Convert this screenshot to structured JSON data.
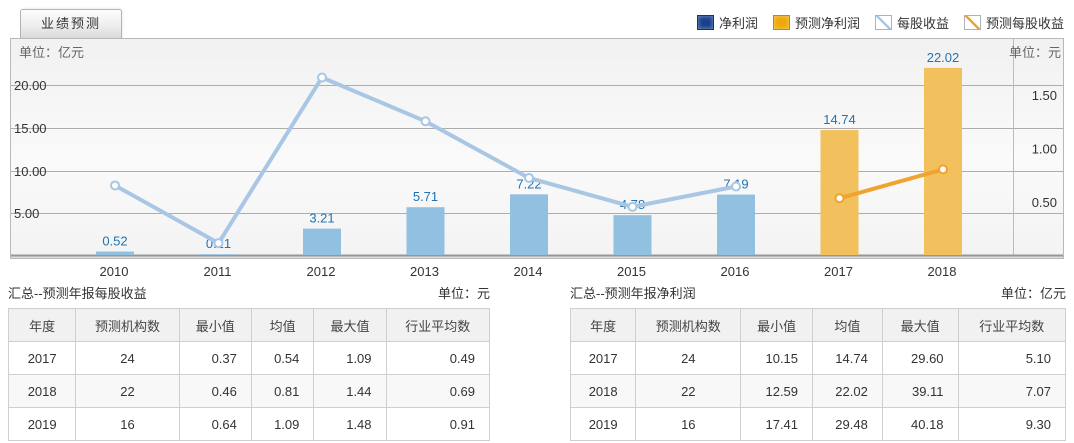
{
  "tab": {
    "label": "业绩预测"
  },
  "legend": {
    "items": [
      {
        "label": "净利润",
        "swatch": "fill",
        "color": "#17418d"
      },
      {
        "label": "预测净利润",
        "swatch": "fill",
        "color": "#eea706"
      },
      {
        "label": "每股收益",
        "swatch": "line",
        "color": "#a9c6e5"
      },
      {
        "label": "预测每股收益",
        "swatch": "line",
        "color": "#f0a32e"
      }
    ]
  },
  "chart_data": {
    "type": "bar",
    "subtype": "bar+line combo, dual axis",
    "categories": [
      "2010",
      "2011",
      "2012",
      "2013",
      "2014",
      "2015",
      "2016",
      "2017",
      "2018"
    ],
    "left_axis": {
      "unit": "单位：亿元",
      "ticks": [
        5,
        10,
        15,
        20
      ],
      "tick_labels": [
        "5.00",
        "10.00",
        "15.00",
        "20.00"
      ],
      "range": [
        0,
        25.4
      ]
    },
    "right_axis": {
      "unit": "单位：元",
      "ticks": [
        0.5,
        1.0,
        1.5
      ],
      "tick_labels": [
        "0.50",
        "1.00",
        "1.50"
      ],
      "range": [
        0,
        2.03
      ]
    },
    "series": [
      {
        "name": "净利润",
        "type": "bar",
        "axis": "left",
        "color": "#92c0e0",
        "values": [
          0.52,
          0.21,
          3.21,
          5.71,
          7.22,
          4.78,
          7.19,
          null,
          null
        ],
        "data_labels": true
      },
      {
        "name": "预测净利润",
        "type": "bar",
        "axis": "left",
        "color": "#f3c05e",
        "values": [
          null,
          null,
          null,
          null,
          null,
          null,
          null,
          14.74,
          22.02
        ],
        "data_labels": true
      },
      {
        "name": "每股收益",
        "type": "line",
        "axis": "right",
        "color": "#a9c6e5",
        "values": [
          0.66,
          0.12,
          1.67,
          1.26,
          0.73,
          0.46,
          0.65,
          null,
          null
        ],
        "values_estimated_from_pixels": true
      },
      {
        "name": "预测每股收益",
        "type": "line",
        "axis": "right",
        "color": "#f0a32e",
        "values": [
          null,
          null,
          null,
          null,
          null,
          null,
          null,
          0.54,
          0.81
        ]
      }
    ],
    "bar_label_color": "#2273b2",
    "grid": true,
    "legend_position": "top-right"
  },
  "sections": {
    "eps": {
      "title": "汇总--预测年报每股收益",
      "unit": "单位：元"
    },
    "profit": {
      "title": "汇总--预测年报净利润",
      "unit": "单位：亿元"
    }
  },
  "tables": {
    "headers": [
      "年度",
      "预测机构数",
      "最小值",
      "均值",
      "最大值",
      "行业平均数"
    ],
    "eps_rows": [
      [
        "2017",
        "24",
        "0.37",
        "0.54",
        "1.09",
        "0.49"
      ],
      [
        "2018",
        "22",
        "0.46",
        "0.81",
        "1.44",
        "0.69"
      ],
      [
        "2019",
        "16",
        "0.64",
        "1.09",
        "1.48",
        "0.91"
      ]
    ],
    "profit_rows": [
      [
        "2017",
        "24",
        "10.15",
        "14.74",
        "29.60",
        "5.10"
      ],
      [
        "2018",
        "22",
        "12.59",
        "22.02",
        "39.11",
        "7.07"
      ],
      [
        "2019",
        "16",
        "17.41",
        "29.48",
        "40.18",
        "9.30"
      ]
    ]
  }
}
